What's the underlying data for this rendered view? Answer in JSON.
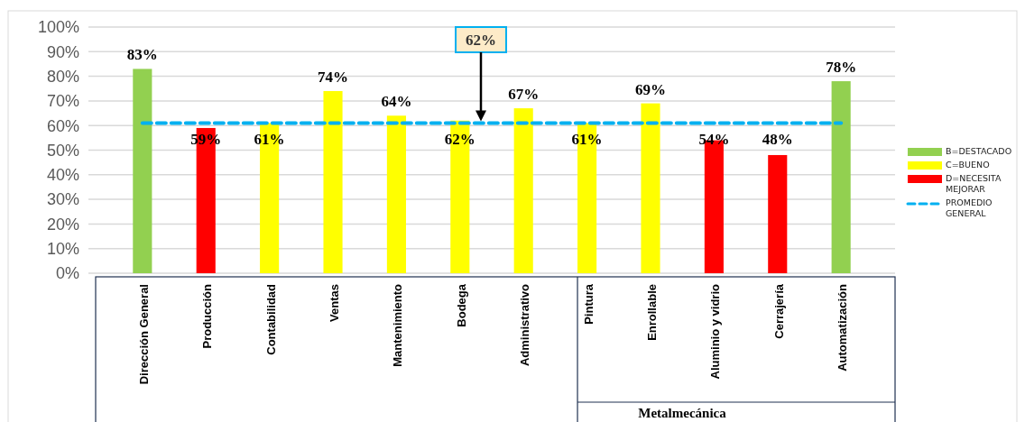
{
  "chart_data": {
    "type": "bar",
    "categories": [
      "Dirección General",
      "Producción",
      "Contabilidad",
      "Ventas",
      "Mantenimiento",
      "Bodega",
      "Administrativo",
      "Pintura",
      "Enrollable",
      "Aluminio y vidrio",
      "Cerrajería",
      "Automatización"
    ],
    "series": [
      {
        "name": "B=DESTACADO",
        "color": "#92d050",
        "values": [
          83,
          null,
          null,
          null,
          null,
          null,
          null,
          null,
          null,
          null,
          null,
          78
        ],
        "value_labels": [
          "83%",
          null,
          null,
          null,
          null,
          null,
          null,
          null,
          null,
          null,
          null,
          "78%"
        ]
      },
      {
        "name": "C=BUENO",
        "color": "#ffff00",
        "values": [
          null,
          null,
          61,
          74,
          64,
          62,
          67,
          61,
          69,
          null,
          null,
          null
        ],
        "value_labels": [
          null,
          null,
          "61%",
          "74%",
          "64%",
          "62%",
          "67%",
          "61%",
          "69%",
          null,
          null,
          null
        ]
      },
      {
        "name": "D=NECESITA MEJORAR",
        "color": "#ff0000",
        "values": [
          null,
          59,
          null,
          null,
          null,
          null,
          null,
          null,
          null,
          54,
          48,
          null
        ],
        "value_labels": [
          null,
          "59%",
          null,
          null,
          null,
          null,
          null,
          null,
          null,
          "54%",
          "48%",
          null
        ]
      }
    ],
    "ylim": [
      0,
      100
    ],
    "yticks": [
      {
        "value": 0,
        "label": "0%"
      },
      {
        "value": 10,
        "label": "10%"
      },
      {
        "value": 20,
        "label": "20%"
      },
      {
        "value": 30,
        "label": "30%"
      },
      {
        "value": 40,
        "label": "40%"
      },
      {
        "value": 50,
        "label": "50%"
      },
      {
        "value": 60,
        "label": "60%"
      },
      {
        "value": 70,
        "label": "70%"
      },
      {
        "value": 80,
        "label": "80%"
      },
      {
        "value": 90,
        "label": "90%"
      },
      {
        "value": 100,
        "label": "100%"
      }
    ],
    "ref_lines": [
      {
        "axis": "y",
        "value": 61,
        "label": "PROMEDIO GENERAL",
        "color": "#00b0f0",
        "line_style": "dashed"
      }
    ],
    "annotations": [
      "62%",
      "Metalmecánica"
    ],
    "grid": "y",
    "legend": "right"
  }
}
